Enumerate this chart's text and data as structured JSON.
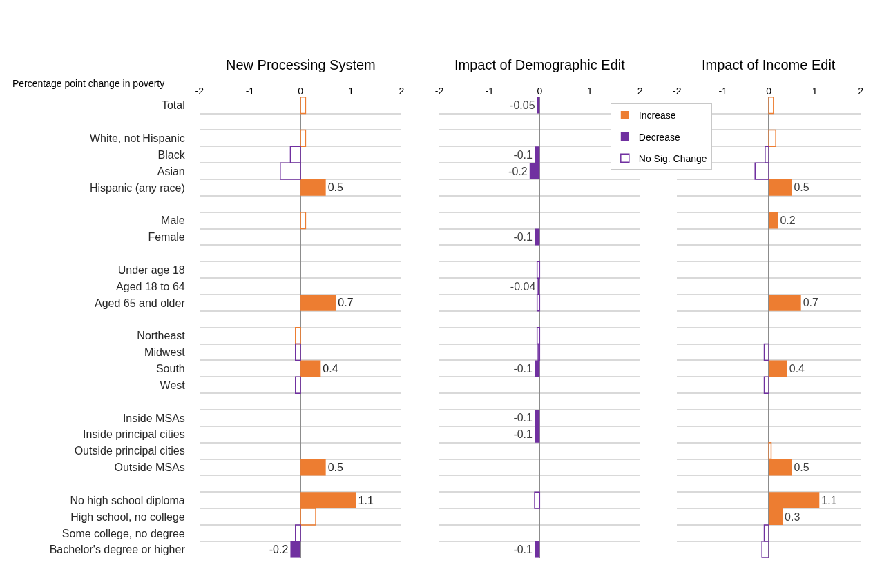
{
  "chart_data": [
    {
      "type": "bar",
      "orientation": "horizontal",
      "title": "New Processing System",
      "xlabel": "Percentage point change in poverty",
      "categories": [
        "Total",
        null,
        "White, not Hispanic",
        "Black",
        "Asian",
        "Hispanic (any race)",
        null,
        "Male",
        "Female",
        null,
        "Under age 18",
        "Aged 18 to 64",
        "Aged 65 and older",
        null,
        "Northeast",
        "Midwest",
        "South",
        "West",
        null,
        "Inside MSAs",
        "Inside principal cities",
        "Outside principal cities",
        "Outside MSAs",
        null,
        "No high school diploma",
        "High school, no college",
        "Some college, no degree",
        "Bachelor's degree or higher"
      ],
      "xlim": [
        -2,
        2
      ],
      "xticks": [
        -2,
        -1,
        0,
        1,
        2
      ],
      "grid": "y",
      "legend": false,
      "series": [
        {
          "color": "#ed7d31",
          "values": [
            null,
            null,
            null,
            null,
            null,
            0.5,
            null,
            null,
            null,
            null,
            null,
            null,
            0.7,
            null,
            null,
            null,
            0.4,
            null,
            null,
            null,
            null,
            null,
            0.5,
            null,
            1.1,
            null,
            null,
            null
          ],
          "value_labels": [
            null,
            null,
            null,
            null,
            null,
            "0.5",
            null,
            null,
            null,
            null,
            null,
            null,
            "0.7",
            null,
            null,
            null,
            "0.4",
            null,
            null,
            null,
            null,
            null,
            "0.5",
            null,
            "1.1",
            null,
            null,
            null
          ]
        },
        {
          "color": "#7030a0",
          "values": [
            null,
            null,
            null,
            null,
            null,
            null,
            null,
            null,
            null,
            null,
            null,
            null,
            null,
            null,
            null,
            null,
            null,
            null,
            null,
            null,
            null,
            null,
            null,
            null,
            null,
            null,
            null,
            -0.2
          ],
          "value_labels": [
            null,
            null,
            null,
            null,
            null,
            null,
            null,
            null,
            null,
            null,
            null,
            null,
            null,
            null,
            null,
            null,
            null,
            null,
            null,
            null,
            null,
            null,
            null,
            null,
            null,
            null,
            null,
            "-0.2"
          ]
        },
        {
          "values": [
            0.1,
            null,
            0.1,
            -0.2,
            -0.4,
            null,
            null,
            0.1,
            null,
            null,
            null,
            null,
            null,
            null,
            -0.1,
            -0.1,
            null,
            -0.1,
            null,
            null,
            null,
            null,
            null,
            null,
            null,
            0.3,
            -0.1,
            null
          ],
          "colors": [
            "#ed7d31",
            null,
            "#ed7d31",
            "#7030a0",
            "#7030a0",
            null,
            null,
            "#ed7d31",
            null,
            null,
            null,
            null,
            null,
            null,
            "#ed7d31",
            "#7030a0",
            null,
            "#7030a0",
            null,
            null,
            null,
            null,
            null,
            null,
            null,
            "#ed7d31",
            "#7030a0",
            null
          ]
        }
      ]
    },
    {
      "type": "bar",
      "orientation": "horizontal",
      "title": "Impact of Demographic Edit",
      "categories": [
        "Total",
        null,
        "White, not Hispanic",
        "Black",
        "Asian",
        "Hispanic (any race)",
        null,
        "Male",
        "Female",
        null,
        "Under age 18",
        "Aged 18 to 64",
        "Aged 65 and older",
        null,
        "Northeast",
        "Midwest",
        "South",
        "West",
        null,
        "Inside MSAs",
        "Inside principal cities",
        "Outside principal cities",
        "Outside MSAs",
        null,
        "No high school diploma",
        "High school, no college",
        "Some college, no degree",
        "Bachelor's degree or higher"
      ],
      "tick_labels": "x",
      "xlim": [
        -2,
        2
      ],
      "xticks": [
        -2,
        -1,
        0,
        1,
        2
      ],
      "grid": "y",
      "legend": "top right",
      "series": [
        {
          "name": "Increase",
          "color": "#ed7d31",
          "values": [
            null,
            null,
            null,
            null,
            null,
            null,
            null,
            null,
            null,
            null,
            null,
            null,
            null,
            null,
            null,
            null,
            null,
            null,
            null,
            null,
            null,
            null,
            null,
            null,
            null,
            null,
            null,
            null
          ]
        },
        {
          "name": "Decrease",
          "color": "#7030a0",
          "values": [
            -0.05,
            null,
            null,
            -0.1,
            -0.2,
            null,
            null,
            null,
            -0.1,
            null,
            null,
            -0.04,
            null,
            null,
            null,
            null,
            -0.1,
            null,
            null,
            -0.1,
            -0.1,
            null,
            null,
            null,
            null,
            null,
            null,
            -0.1
          ],
          "value_labels": [
            "-0.05",
            null,
            null,
            "-0.1",
            "-0.2",
            null,
            null,
            null,
            "-0.1",
            null,
            null,
            "-0.04",
            null,
            null,
            null,
            null,
            "-0.1",
            null,
            null,
            "-0.1",
            "-0.1",
            null,
            null,
            null,
            null,
            null,
            null,
            "-0.1"
          ]
        },
        {
          "name": "No Sig. Change",
          "values": [
            null,
            null,
            null,
            null,
            null,
            null,
            null,
            null,
            null,
            null,
            -0.05,
            null,
            -0.05,
            null,
            -0.05,
            -0.03,
            null,
            null,
            null,
            null,
            null,
            null,
            null,
            null,
            -0.1,
            null,
            null,
            null
          ],
          "colors": [
            null,
            null,
            null,
            null,
            null,
            null,
            null,
            null,
            null,
            null,
            "#7030a0",
            null,
            "#7030a0",
            null,
            "#7030a0",
            "#7030a0",
            null,
            null,
            null,
            null,
            null,
            null,
            null,
            null,
            "#7030a0",
            null,
            null,
            null
          ]
        }
      ]
    },
    {
      "type": "bar",
      "orientation": "horizontal",
      "title": "Impact of Income Edit",
      "categories": [
        "Total",
        null,
        "White, not Hispanic",
        "Black",
        "Asian",
        "Hispanic (any race)",
        null,
        "Male",
        "Female",
        null,
        "Under age 18",
        "Aged 18 to 64",
        "Aged 65 and older",
        null,
        "Northeast",
        "Midwest",
        "South",
        "West",
        null,
        "Inside MSAs",
        "Inside principal cities",
        "Outside principal cities",
        "Outside MSAs",
        null,
        "No high school diploma",
        "High school, no college",
        "Some college, no degree",
        "Bachelor's degree or higher"
      ],
      "tick_labels": "x",
      "xlim": [
        -2,
        2
      ],
      "xticks": [
        -2,
        -1,
        0,
        1,
        2
      ],
      "grid": "y",
      "legend": false,
      "series": [
        {
          "color": "#ed7d31",
          "values": [
            null,
            null,
            null,
            null,
            null,
            0.5,
            null,
            0.2,
            null,
            null,
            null,
            null,
            0.7,
            null,
            null,
            null,
            0.4,
            null,
            null,
            null,
            null,
            null,
            0.5,
            null,
            1.1,
            0.3,
            null,
            null
          ],
          "value_labels": [
            null,
            null,
            null,
            null,
            null,
            "0.5",
            null,
            "0.2",
            null,
            null,
            null,
            null,
            "0.7",
            null,
            null,
            null,
            "0.4",
            null,
            null,
            null,
            null,
            null,
            "0.5",
            null,
            "1.1",
            "0.3",
            null,
            null
          ]
        },
        {
          "values": [
            0.1,
            null,
            0.15,
            -0.08,
            -0.3,
            null,
            null,
            null,
            null,
            null,
            null,
            null,
            null,
            null,
            null,
            -0.1,
            null,
            -0.1,
            null,
            null,
            null,
            0.05,
            null,
            null,
            null,
            null,
            -0.1,
            -0.15
          ],
          "colors": [
            "#ed7d31",
            null,
            "#ed7d31",
            "#7030a0",
            "#7030a0",
            null,
            null,
            null,
            null,
            null,
            null,
            null,
            null,
            null,
            null,
            "#7030a0",
            null,
            "#7030a0",
            null,
            null,
            null,
            "#ed7d31",
            null,
            null,
            null,
            null,
            "#7030a0",
            "#7030a0"
          ]
        }
      ]
    }
  ]
}
